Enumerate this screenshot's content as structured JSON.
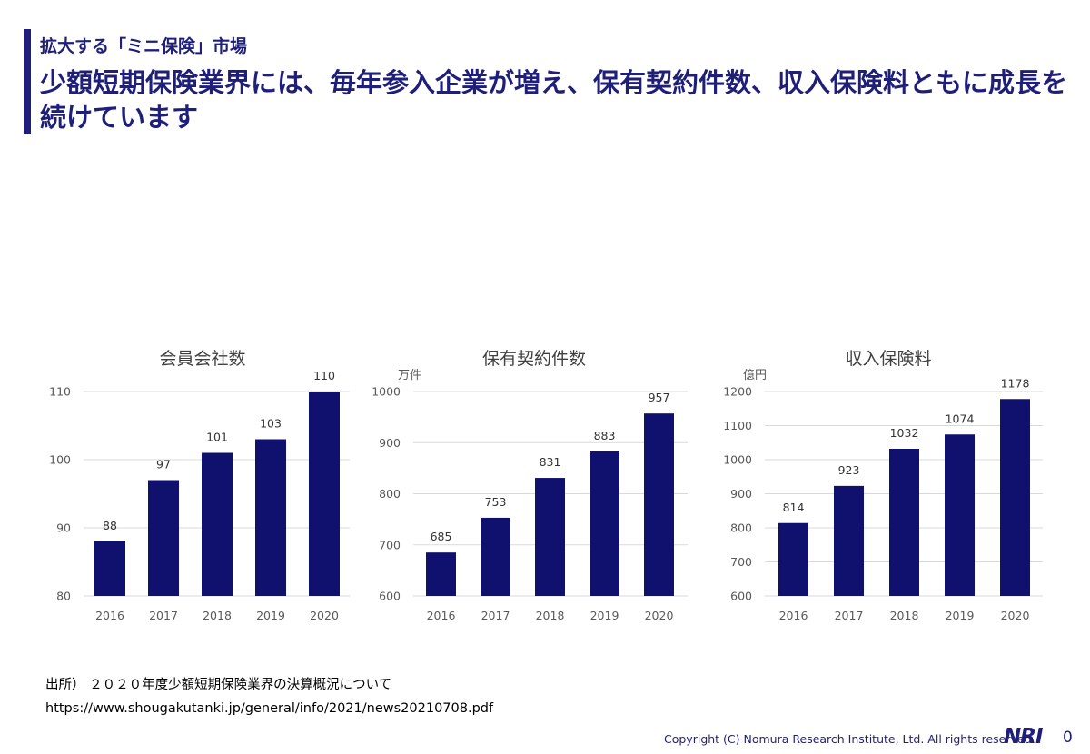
{
  "header": {
    "kicker": "拡大する「ミニ保険」市場",
    "title": "少額短期保険業界には、毎年参入企業が増え、保有契約件数、収入保険料ともに成長を続けています"
  },
  "source": {
    "line1": "出所） ２０２０年度少額短期保険業界の決算概況について",
    "line2": "https://www.shougakutanki.jp/general/info/2021/news20210708.pdf"
  },
  "footer": {
    "copyright": "Copyright (C)   Nomura Research Institute, Ltd. All rights reserved.",
    "logo": "NRI",
    "page_number": "0"
  },
  "colors": {
    "accent": "#1f1f7a",
    "bar": "#10106e",
    "grid": "#d9d9d9",
    "tick": "#595959"
  },
  "chart_data": [
    {
      "type": "bar",
      "title": "会員会社数",
      "unit": "",
      "categories": [
        "2016",
        "2017",
        "2018",
        "2019",
        "2020"
      ],
      "values": [
        88,
        97,
        101,
        103,
        110
      ],
      "yticks": [
        80,
        90,
        100,
        110
      ],
      "ylim": [
        80,
        110
      ],
      "grid": true
    },
    {
      "type": "bar",
      "title": "保有契約件数",
      "unit": "万件",
      "categories": [
        "2016",
        "2017",
        "2018",
        "2019",
        "2020"
      ],
      "values": [
        685,
        753,
        831,
        883,
        957
      ],
      "yticks": [
        600,
        700,
        800,
        900,
        1000
      ],
      "ylim": [
        600,
        1000
      ],
      "grid": true
    },
    {
      "type": "bar",
      "title": "収入保険料",
      "unit": "億円",
      "categories": [
        "2016",
        "2017",
        "2018",
        "2019",
        "2020"
      ],
      "values": [
        814,
        923,
        1032,
        1074,
        1178
      ],
      "yticks": [
        600,
        700,
        800,
        900,
        1000,
        1100,
        1200
      ],
      "ylim": [
        600,
        1200
      ],
      "grid": true
    }
  ]
}
